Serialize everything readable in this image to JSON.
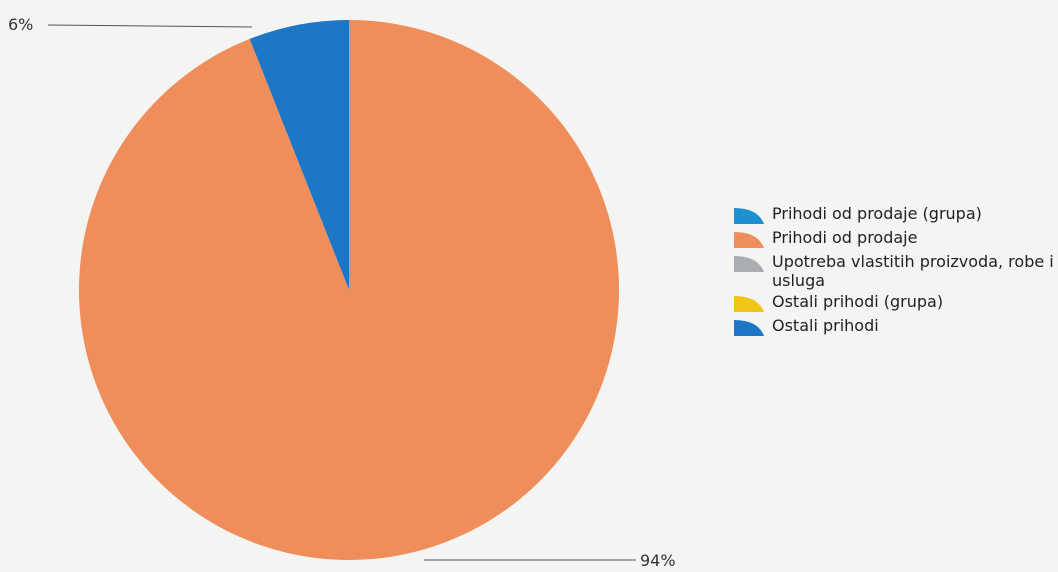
{
  "chart_data": {
    "type": "pie",
    "title": "",
    "slices": [
      {
        "label": "Prihodi od prodaje (grupa)",
        "value": 0,
        "color": "#1e8fd0"
      },
      {
        "label": "Prihodi od prodaje",
        "value": 94,
        "color": "#f08e5b"
      },
      {
        "label": "Upotreba vlastitih proizvoda, robe i usluga",
        "value": 0,
        "color": "#a9aeb2"
      },
      {
        "label": "Ostali prihodi (grupa)",
        "value": 0,
        "color": "#f2c418"
      },
      {
        "label": "Ostali prihodi",
        "value": 6,
        "color": "#1c77c7"
      }
    ],
    "data_labels": [
      "6%",
      "94%"
    ],
    "legend_position": "right"
  }
}
